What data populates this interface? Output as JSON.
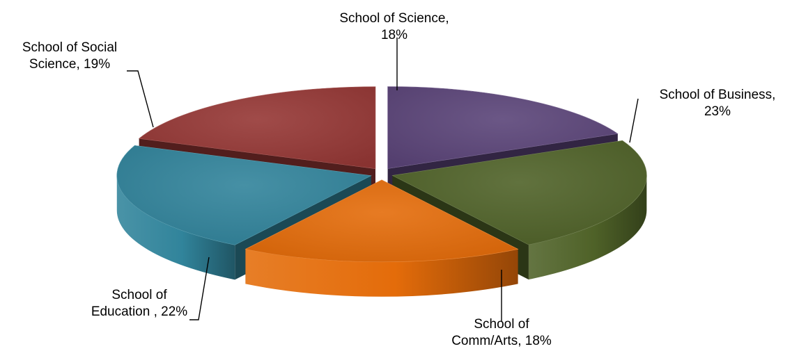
{
  "chart_data": {
    "type": "pie",
    "title": "",
    "legend": "none",
    "slices": [
      {
        "label_lines": [
          "School of Science,",
          "18%"
        ],
        "category": "School of Science",
        "value": 18,
        "color": "#5b4479"
      },
      {
        "label_lines": [
          "School of Business,",
          "23%"
        ],
        "category": "School of Business",
        "value": 23,
        "color": "#4f6228"
      },
      {
        "label_lines": [
          "School of",
          "Comm/Arts, 18%"
        ],
        "category": "School of Comm/Arts",
        "value": 18,
        "color": "#e46c0a"
      },
      {
        "label_lines": [
          "School of",
          "Education , 22%"
        ],
        "category": "School of Education",
        "value": 22,
        "color": "#31849b"
      },
      {
        "label_lines": [
          "School of Social",
          "Science, 19%"
        ],
        "category": "School of Social Science",
        "value": 19,
        "color": "#953735"
      }
    ]
  }
}
